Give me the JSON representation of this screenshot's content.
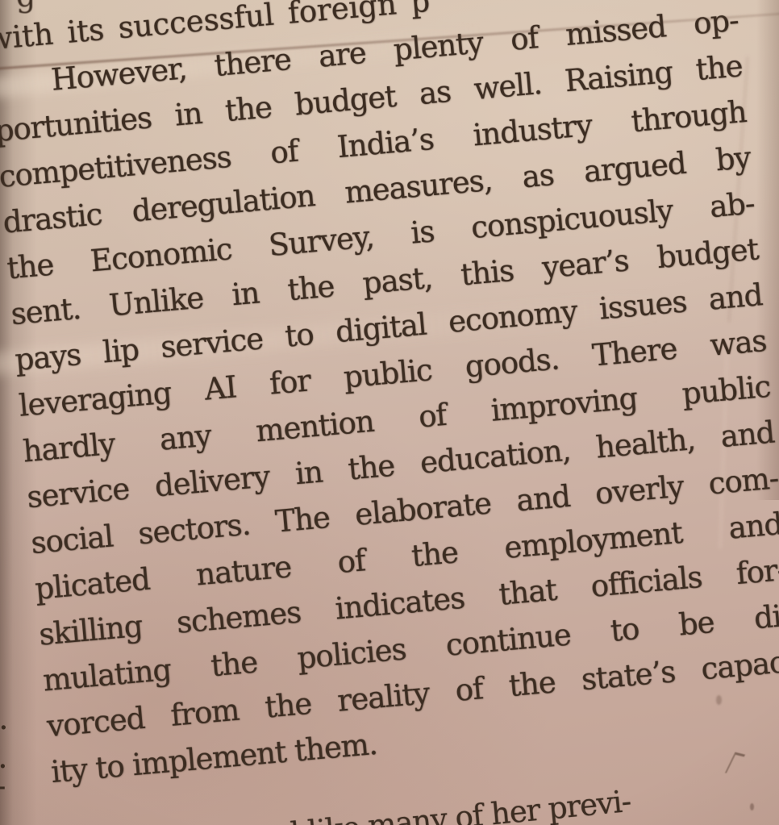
{
  "colors": {
    "paper": "#cfb6a8",
    "paper_light": "#dcc8b6",
    "paper_dark": "#b5988b",
    "ink": "#3b2c21"
  },
  "article": {
    "lines": [
      "with its successful foreign p",
      "However, there are plenty of missed op-",
      "portunities in the budget as well. Raising the",
      "competitiveness of India’s industry through",
      "drastic deregulation measures, as argued by",
      "the Economic Survey, is conspicuously ab-",
      "sent. Unlike in the past, this year’s budget",
      "pays lip service to digital economy issues and",
      "leveraging AI for public goods. There was",
      "hardly any mention of improving public",
      "service delivery in the education, health, and",
      "social sectors. The elaborate and overly com-",
      "plicated nature of the employment and",
      "skilling schemes indicates that officials for-",
      "mulating the policies continue to be di-",
      "vorced from the reality of the state’s capac-",
      "ity to implement them."
    ],
    "bottom_fragment": "ll and like many of her previ-",
    "top_edge_fragment": "g",
    "left_edge_fragments": [
      ".",
      ".",
      "-"
    ]
  }
}
